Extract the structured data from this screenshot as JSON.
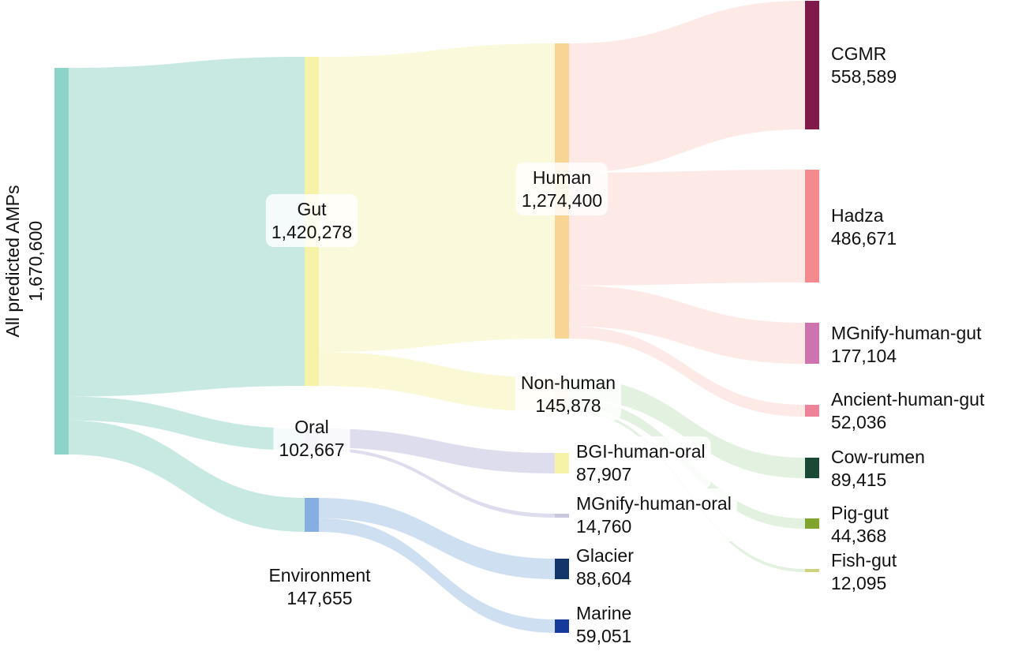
{
  "diagram": {
    "nodes": [
      {
        "id": "all",
        "name": "All predicted AMPs",
        "value": "1,670,600",
        "color": "#8dd3c7"
      },
      {
        "id": "gut",
        "name": "Gut",
        "value": "1,420,278",
        "color": "#f6f3a8"
      },
      {
        "id": "oral",
        "name": "Oral",
        "value": "102,667",
        "color": "#c9c6e0"
      },
      {
        "id": "env",
        "name": "Environment",
        "value": "147,655",
        "color": "#86aee0"
      },
      {
        "id": "human",
        "name": "Human",
        "value": "1,274,400",
        "color": "#f8d595"
      },
      {
        "id": "nonhuman",
        "name": "Non-human",
        "value": "145,878",
        "color": "#fae0c8"
      },
      {
        "id": "cgmr",
        "name": "CGMR",
        "value": "558,589",
        "color": "#7f1a4b"
      },
      {
        "id": "hadza",
        "name": "Hadza",
        "value": "486,671",
        "color": "#f28b8d"
      },
      {
        "id": "mgnify_gut",
        "name": "MGnify-human-gut",
        "value": "177,104",
        "color": "#cd74ae"
      },
      {
        "id": "ancient",
        "name": "Ancient-human-gut",
        "value": "52,036",
        "color": "#ee8299"
      },
      {
        "id": "cow",
        "name": "Cow-rumen",
        "value": "89,415",
        "color": "#1a4a35"
      },
      {
        "id": "pig",
        "name": "Pig-gut",
        "value": "44,368",
        "color": "#7fa52e"
      },
      {
        "id": "fish",
        "name": "Fish-gut",
        "value": "12,095",
        "color": "#cfd27f"
      },
      {
        "id": "bgi_oral",
        "name": "BGI-human-oral",
        "value": "87,907",
        "color": "#f6f3a8"
      },
      {
        "id": "mgnify_oral",
        "name": "MGnify-human-oral",
        "value": "14,760",
        "color": "#c9c6e0"
      },
      {
        "id": "glacier",
        "name": "Glacier",
        "value": "88,604",
        "color": "#123669"
      },
      {
        "id": "marine",
        "name": "Marine",
        "value": "59,051",
        "color": "#16399c"
      }
    ],
    "links": [
      {
        "source": "all",
        "target": "gut",
        "value": 1420278,
        "color": "#c7e9e2"
      },
      {
        "source": "all",
        "target": "oral",
        "value": 102667,
        "color": "#c7e9e2"
      },
      {
        "source": "all",
        "target": "env",
        "value": 147655,
        "color": "#c7e9e2"
      },
      {
        "source": "gut",
        "target": "human",
        "value": 1274400,
        "color": "#fbf9dc"
      },
      {
        "source": "gut",
        "target": "nonhuman",
        "value": 145878,
        "color": "#fbf8d6"
      },
      {
        "source": "human",
        "target": "cgmr",
        "value": 558589,
        "color": "#fde9e6"
      },
      {
        "source": "human",
        "target": "hadza",
        "value": 486671,
        "color": "#fde9e6"
      },
      {
        "source": "human",
        "target": "mgnify_gut",
        "value": 177104,
        "color": "#fde9e6"
      },
      {
        "source": "human",
        "target": "ancient",
        "value": 52036,
        "color": "#fde9e6"
      },
      {
        "source": "nonhuman",
        "target": "cow",
        "value": 89415,
        "color": "#e3f1e0"
      },
      {
        "source": "nonhuman",
        "target": "pig",
        "value": 44368,
        "color": "#e3f1e0"
      },
      {
        "source": "nonhuman",
        "target": "fish",
        "value": 12095,
        "color": "#e3f1e0"
      },
      {
        "source": "oral",
        "target": "bgi_oral",
        "value": 87907,
        "color": "#dedded"
      },
      {
        "source": "oral",
        "target": "mgnify_oral",
        "value": 14760,
        "color": "#dedded"
      },
      {
        "source": "env",
        "target": "glacier",
        "value": 88604,
        "color": "#cfdff2"
      },
      {
        "source": "env",
        "target": "marine",
        "value": 59051,
        "color": "#cfdff2"
      }
    ]
  }
}
